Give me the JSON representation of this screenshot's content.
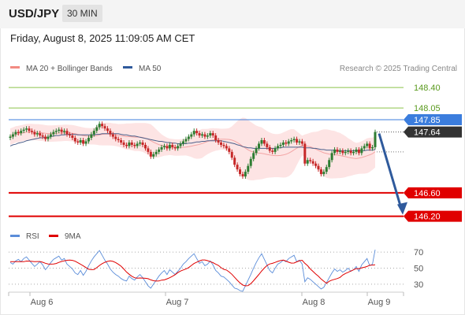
{
  "header": {
    "symbol": "USD/JPY",
    "timeframe": "30 MIN"
  },
  "datetime": "Friday, August 8, 2025 11:09:05 AM CET",
  "legend": [
    {
      "label": "MA 20 + Bollinger Bands",
      "color": "#f28b82"
    },
    {
      "label": "MA 50",
      "color": "#2f5a9c"
    }
  ],
  "watermark": "Research © 2025 Trading Central",
  "colors": {
    "up": "#2e7d32",
    "down": "#c62828",
    "resistance": "#8bc34a",
    "support": "#e00000",
    "pivot": "#3b7ddd",
    "arrow": "#2f5a9c",
    "band_fill": "#fde4e4",
    "current_tag": "#333333"
  },
  "rsi_legend": [
    {
      "label": "RSI",
      "color": "#5b8dd9"
    },
    {
      "label": "9MA",
      "color": "#e00000"
    }
  ],
  "chart_data": [
    {
      "type": "candlestick",
      "title": "USD/JPY",
      "x_labels": [
        "Aug 6",
        "Aug 7",
        "Aug 8",
        "Aug 9"
      ],
      "ylim": [
        146.1,
        148.55
      ],
      "levels": [
        {
          "value": 148.4,
          "label": "148.40",
          "kind": "resistance"
        },
        {
          "value": 148.05,
          "label": "148.05",
          "kind": "resistance"
        },
        {
          "value": 147.85,
          "label": "147.85",
          "kind": "pivot"
        },
        {
          "value": 146.6,
          "label": "146.60",
          "kind": "support"
        },
        {
          "value": 146.2,
          "label": "146.20",
          "kind": "support"
        }
      ],
      "last_price": {
        "value": 147.64,
        "label": "147.64"
      },
      "projection": {
        "from": 147.64,
        "to": 146.2
      },
      "close": [
        147.56,
        147.6,
        147.64,
        147.62,
        147.66,
        147.68,
        147.7,
        147.66,
        147.64,
        147.6,
        147.62,
        147.58,
        147.56,
        147.52,
        147.56,
        147.6,
        147.64,
        147.66,
        147.68,
        147.64,
        147.66,
        147.6,
        147.58,
        147.54,
        147.48,
        147.46,
        147.5,
        147.44,
        147.48,
        147.54,
        147.6,
        147.66,
        147.72,
        147.78,
        147.74,
        147.7,
        147.66,
        147.6,
        147.56,
        147.52,
        147.5,
        147.46,
        147.42,
        147.4,
        147.46,
        147.42,
        147.4,
        147.44,
        147.46,
        147.42,
        147.36,
        147.3,
        147.22,
        147.26,
        147.3,
        147.34,
        147.38,
        147.4,
        147.36,
        147.42,
        147.38,
        147.36,
        147.4,
        147.44,
        147.48,
        147.52,
        147.56,
        147.6,
        147.66,
        147.62,
        147.58,
        147.6,
        147.56,
        147.58,
        147.62,
        147.58,
        147.5,
        147.46,
        147.42,
        147.4,
        147.36,
        147.3,
        147.2,
        147.08,
        147.0,
        146.92,
        146.88,
        146.96,
        147.06,
        147.18,
        147.28,
        147.36,
        147.44,
        147.5,
        147.44,
        147.38,
        147.32,
        147.3,
        147.36,
        147.4,
        147.42,
        147.46,
        147.44,
        147.48,
        147.5,
        147.52,
        147.46,
        147.48,
        147.44,
        147.1,
        147.16,
        147.14,
        147.1,
        147.06,
        147.0,
        146.92,
        146.96,
        147.04,
        147.16,
        147.28,
        147.34,
        147.3,
        147.32,
        147.28,
        147.3,
        147.32,
        147.28,
        147.3,
        147.34,
        147.28,
        147.36,
        147.4,
        147.44,
        147.36,
        147.38,
        147.64
      ],
      "series": [
        {
          "name": "MA 50",
          "values": [
            147.4,
            147.42,
            147.43,
            147.45,
            147.46,
            147.47,
            147.49,
            147.5,
            147.51,
            147.52,
            147.53,
            147.54,
            147.54,
            147.55,
            147.55,
            147.56,
            147.57,
            147.58,
            147.58,
            147.59,
            147.59,
            147.6,
            147.6,
            147.6,
            147.6,
            147.59,
            147.59,
            147.59,
            147.59,
            147.59,
            147.59,
            147.59,
            147.6,
            147.6,
            147.61,
            147.61,
            147.61,
            147.61,
            147.61,
            147.61,
            147.61,
            147.6,
            147.59,
            147.59,
            147.58,
            147.57,
            147.57,
            147.56,
            147.55,
            147.54,
            147.53,
            147.52,
            147.51,
            147.5,
            147.49,
            147.48,
            147.48,
            147.47,
            147.46,
            147.46,
            147.45,
            147.45,
            147.44,
            147.44,
            147.44,
            147.44,
            147.45,
            147.45,
            147.46,
            147.47,
            147.47,
            147.48,
            147.48,
            147.49,
            147.49,
            147.49,
            147.49,
            147.49,
            147.49,
            147.48,
            147.47,
            147.46,
            147.45,
            147.44,
            147.42,
            147.41,
            147.39,
            147.38,
            147.37,
            147.37,
            147.36,
            147.36,
            147.36,
            147.36,
            147.36,
            147.36,
            147.36,
            147.36,
            147.36,
            147.37,
            147.37,
            147.38,
            147.38,
            147.38,
            147.38,
            147.38,
            147.38,
            147.38,
            147.38,
            147.37,
            147.37,
            147.37,
            147.36,
            147.36,
            147.35,
            147.34,
            147.34,
            147.33,
            147.33,
            147.33,
            147.33,
            147.32,
            147.32,
            147.32,
            147.32,
            147.32,
            147.32,
            147.32,
            147.32,
            147.32,
            147.32,
            147.32,
            147.33,
            147.33,
            147.33,
            147.34
          ]
        }
      ]
    },
    {
      "type": "line",
      "title": "RSI",
      "ylim": [
        20,
        78
      ],
      "y_ticks": [
        70,
        50,
        30
      ],
      "series": [
        {
          "name": "RSI",
          "values": [
            57,
            55,
            59,
            61,
            58,
            62,
            64,
            60,
            56,
            52,
            55,
            58,
            54,
            48,
            52,
            57,
            61,
            63,
            65,
            60,
            62,
            55,
            52,
            49,
            44,
            42,
            47,
            41,
            46,
            53,
            59,
            64,
            68,
            72,
            66,
            60,
            55,
            49,
            45,
            42,
            40,
            37,
            35,
            34,
            40,
            37,
            35,
            39,
            42,
            38,
            33,
            28,
            25,
            30,
            35,
            40,
            44,
            47,
            42,
            48,
            45,
            42,
            46,
            50,
            55,
            58,
            62,
            65,
            68,
            62,
            56,
            58,
            53,
            55,
            59,
            54,
            47,
            44,
            40,
            39,
            36,
            33,
            29,
            25,
            24,
            22,
            21,
            28,
            35,
            42,
            50,
            57,
            63,
            68,
            61,
            54,
            47,
            44,
            50,
            55,
            57,
            60,
            58,
            62,
            64,
            66,
            58,
            60,
            55,
            33,
            38,
            36,
            33,
            30,
            27,
            24,
            26,
            32,
            38,
            44,
            49,
            46,
            48,
            45,
            47,
            50,
            46,
            48,
            52,
            46,
            54,
            58,
            62,
            53,
            55,
            73
          ]
        },
        {
          "name": "9MA",
          "values": [
            58,
            58,
            58,
            58,
            58,
            58,
            58.8,
            58.7,
            58.4,
            58,
            58.2,
            58.2,
            57.4,
            56.1,
            55.2,
            55,
            55.2,
            55.8,
            57.2,
            58.3,
            59.1,
            59.8,
            60,
            59.7,
            58.6,
            56.8,
            54.9,
            52.8,
            50.8,
            48.6,
            48.1,
            48.3,
            50.6,
            53.3,
            55.6,
            57.3,
            58.4,
            59,
            58.4,
            57,
            54.8,
            52.4,
            49,
            45.2,
            42.3,
            39.9,
            38,
            37.4,
            37.7,
            37.6,
            37.3,
            36.8,
            35.3,
            34.3,
            33.9,
            34,
            35,
            35.3,
            36.6,
            38,
            39.9,
            41.8,
            44.4,
            46.3,
            47.7,
            48.9,
            50.7,
            53.3,
            55.8,
            57.5,
            58.9,
            60.2,
            60.2,
            59.3,
            58,
            56.9,
            55,
            53.4,
            50.6,
            48.5,
            47.6,
            45.2,
            42.3,
            38.5,
            34.8,
            31.6,
            28.9,
            27.9,
            28.2,
            30.6,
            34.3,
            38.2,
            42.1,
            46.4,
            50.1,
            53.3,
            55.2,
            56,
            57.2,
            58.4,
            59.4,
            60,
            58.8,
            57.4,
            56.3,
            56.4,
            57.8,
            59.2,
            59.8,
            56,
            53,
            49,
            46,
            42.7,
            39.9,
            36.4,
            33.8,
            31,
            33.6,
            35,
            36,
            37,
            38.4,
            41.3,
            43.3,
            44.8,
            46.3,
            47.9,
            49.4,
            49.3,
            50.4,
            51.1,
            52,
            53.7,
            53.8,
            54.2
          ]
        }
      ]
    }
  ]
}
